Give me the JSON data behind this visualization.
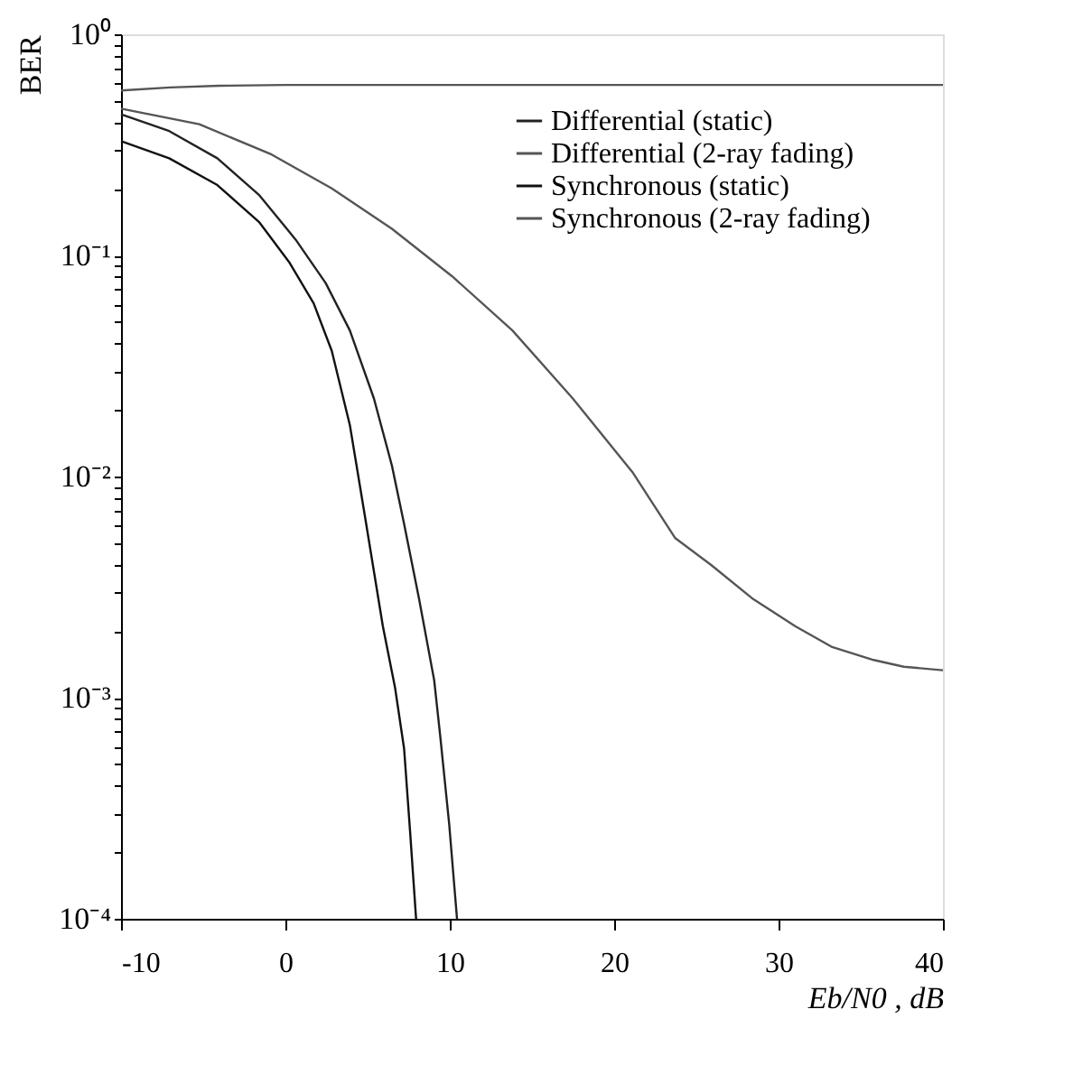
{
  "chart_data": {
    "type": "line",
    "xlabel": "Eb/N0 , dB",
    "ylabel": "BER",
    "log": "y",
    "grid": false,
    "legend": "top right",
    "line_style": "solid",
    "marker": "none",
    "xlim": [
      -10,
      40
    ],
    "xticks": [
      -10,
      0,
      10,
      20,
      30,
      40
    ],
    "ylim": [
      0.0001,
      1
    ],
    "yticks": [
      {
        "value": 1,
        "label": "10⁰"
      },
      {
        "value": 0.1,
        "label": "10⁻¹"
      },
      {
        "value": 0.01,
        "label": "10⁻²"
      },
      {
        "value": 0.001,
        "label": "10⁻³"
      },
      {
        "value": 0.0001,
        "label": "10⁻⁴"
      },
      {
        "value": 0.2,
        "label": null
      },
      {
        "value": 0.3,
        "label": null
      },
      {
        "value": 0.4,
        "label": null
      },
      {
        "value": 0.5,
        "label": null
      },
      {
        "value": 0.6,
        "label": null
      },
      {
        "value": 0.7,
        "label": null
      },
      {
        "value": 0.8,
        "label": null
      },
      {
        "value": 0.9,
        "label": null
      },
      {
        "value": 0.02,
        "label": null
      },
      {
        "value": 0.03,
        "label": null
      },
      {
        "value": 0.04,
        "label": null
      },
      {
        "value": 0.05,
        "label": null
      },
      {
        "value": 0.06,
        "label": null
      },
      {
        "value": 0.07,
        "label": null
      },
      {
        "value": 0.08,
        "label": null
      },
      {
        "value": 0.09,
        "label": null
      },
      {
        "value": 0.002,
        "label": null
      },
      {
        "value": 0.003,
        "label": null
      },
      {
        "value": 0.004,
        "label": null
      },
      {
        "value": 0.005,
        "label": null
      },
      {
        "value": 0.006,
        "label": null
      },
      {
        "value": 0.007,
        "label": null
      },
      {
        "value": 0.008,
        "label": null
      },
      {
        "value": 0.009,
        "label": null
      },
      {
        "value": 0.0002,
        "label": null
      },
      {
        "value": 0.0003,
        "label": null
      },
      {
        "value": 0.0004,
        "label": null
      },
      {
        "value": 0.0005,
        "label": null
      },
      {
        "value": 0.0006,
        "label": null
      },
      {
        "value": 0.0007,
        "label": null
      },
      {
        "value": 0.0008,
        "label": null
      },
      {
        "value": 0.0009,
        "label": null
      }
    ],
    "series": [
      {
        "name": "Differential (static)",
        "color": "#222222",
        "x": [
          -10,
          -7.07,
          -4.14,
          -1.58,
          0.62,
          2.45,
          3.92,
          5.38,
          6.48,
          7.22,
          8.13,
          9.05,
          9.41,
          9.96,
          10.44
        ],
        "values": [
          0.435,
          0.365,
          0.275,
          0.187,
          0.118,
          0.075,
          0.0458,
          0.0226,
          0.0112,
          0.0061,
          0.0028,
          0.0012,
          0.00068,
          0.00027,
          0.0001
        ]
      },
      {
        "name": "Differential (2-ray fading)",
        "color": "#555555",
        "x": [
          -10,
          -7,
          -4,
          0,
          5,
          10,
          20,
          30,
          40
        ],
        "values": [
          0.557,
          0.575,
          0.585,
          0.59,
          0.59,
          0.59,
          0.59,
          0.59,
          0.59
        ]
      },
      {
        "name": "Synchronous (static)",
        "color": "#111111",
        "x": [
          -10,
          -7.07,
          -4.14,
          -1.58,
          0.26,
          1.72,
          2.82,
          3.92,
          4.84,
          5.93,
          6.67,
          7.22,
          7.58,
          7.95
        ],
        "values": [
          0.329,
          0.275,
          0.208,
          0.141,
          0.0925,
          0.0607,
          0.037,
          0.0171,
          0.0066,
          0.0021,
          0.00111,
          0.000588,
          0.000251,
          0.0001
        ]
      },
      {
        "name": "Synchronous (2-ray fading)",
        "color": "#555555",
        "x": [
          -10,
          -5.24,
          -0.84,
          2.82,
          6.48,
          10.15,
          13.81,
          17.47,
          21.14,
          23.7,
          25.9,
          28.46,
          31.03,
          33.22,
          35.79,
          37.62,
          40
        ],
        "values": [
          0.461,
          0.392,
          0.286,
          0.201,
          0.132,
          0.0804,
          0.0458,
          0.0226,
          0.0104,
          0.00528,
          0.00398,
          0.00279,
          0.0021,
          0.0017,
          0.00148,
          0.00138,
          0.00133
        ]
      }
    ]
  }
}
